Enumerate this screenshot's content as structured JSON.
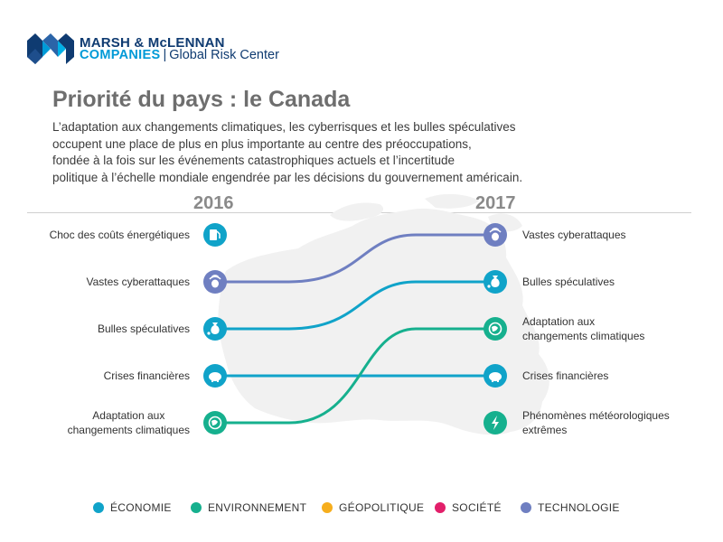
{
  "logo": {
    "line1": "MARSH & McLENNAN",
    "line2_strong": "COMPANIES",
    "line2_sep": "|",
    "line2_sub": "Global Risk Center"
  },
  "title": "Priorité du pays : le Canada",
  "description": [
    "L’adaptation aux changements climatiques, les cyberrisques et les bulles spéculatives",
    "occupent une place de plus en plus importante au centre des préoccupations,",
    "fondée à la fois sur les événements catastrophiques actuels et l’incertitude",
    "politique à l’échelle mondiale engendrée par les décisions du gouvernement américain."
  ],
  "colors": {
    "economie": "#10a3c9",
    "environnement": "#16b08e",
    "geopolitique": "#f6ae1d",
    "societe": "#e21f6a",
    "technologie": "#6f7fc1"
  },
  "chart_data": {
    "type": "slope",
    "years": [
      "2016",
      "2017"
    ],
    "left": [
      {
        "rank": 1,
        "label": "Choc des coûts énergétiques",
        "category": "economie",
        "icon": "gas-pump-icon"
      },
      {
        "rank": 2,
        "label": "Vastes cyberattaques",
        "category": "technologie",
        "icon": "cyber-alien-icon"
      },
      {
        "rank": 3,
        "label": "Bulles spéculatives",
        "category": "economie",
        "icon": "money-bag-icon"
      },
      {
        "rank": 4,
        "label": "Crises financières",
        "category": "economie",
        "icon": "piggy-bank-icon"
      },
      {
        "rank": 5,
        "label": [
          "Adaptation aux",
          "changements climatiques"
        ],
        "category": "environnement",
        "icon": "globe-thermometer-icon"
      }
    ],
    "right": [
      {
        "rank": 1,
        "label": "Vastes cyberattaques",
        "category": "technologie",
        "icon": "cyber-alien-icon"
      },
      {
        "rank": 2,
        "label": "Bulles spéculatives",
        "category": "economie",
        "icon": "money-bag-icon"
      },
      {
        "rank": 3,
        "label": [
          "Adaptation aux",
          "changements climatiques"
        ],
        "category": "environnement",
        "icon": "globe-thermometer-icon"
      },
      {
        "rank": 4,
        "label": "Crises financières",
        "category": "economie",
        "icon": "piggy-bank-icon"
      },
      {
        "rank": 5,
        "label": [
          "Phénomènes météorologiques",
          "extrêmes"
        ],
        "category": "environnement",
        "icon": "lightning-icon"
      }
    ],
    "links": [
      {
        "from_rank": 2,
        "to_rank": 1,
        "category": "technologie"
      },
      {
        "from_rank": 3,
        "to_rank": 2,
        "category": "economie"
      },
      {
        "from_rank": 4,
        "to_rank": 4,
        "category": "economie"
      },
      {
        "from_rank": 5,
        "to_rank": 3,
        "category": "environnement"
      }
    ]
  },
  "legend": [
    {
      "label": "ÉCONOMIE",
      "category": "economie"
    },
    {
      "label": "ENVIRONNEMENT",
      "category": "environnement"
    },
    {
      "label": "GÉOPOLITIQUE",
      "category": "geopolitique"
    },
    {
      "label": "SOCIÉTÉ",
      "category": "societe"
    },
    {
      "label": "TECHNOLOGIE",
      "category": "technologie"
    }
  ]
}
